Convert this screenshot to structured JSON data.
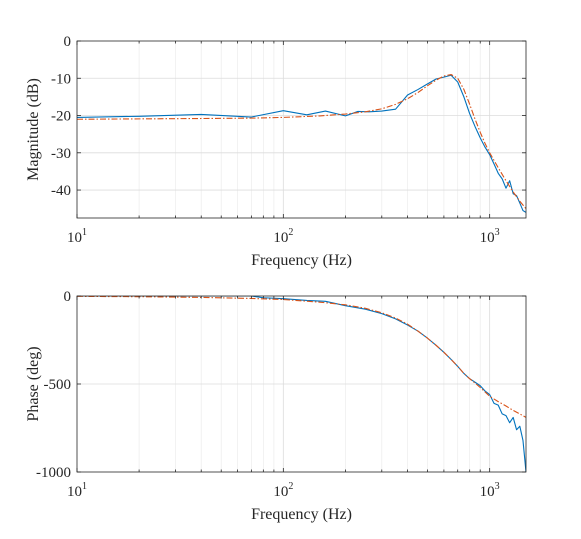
{
  "chart_data": [
    {
      "type": "line",
      "xscale": "log",
      "xlim": [
        10,
        1500
      ],
      "ylim": [
        -47.5,
        0
      ],
      "xlabel": "Frequency (Hz)",
      "ylabel": "Magnitude (dB)",
      "yticks": [
        0,
        -10,
        -20,
        -30,
        -40
      ],
      "ytick_labels": [
        "0",
        "-10",
        "-20",
        "-30",
        "-40"
      ],
      "xticks": [
        {
          "value": 10,
          "base": "10",
          "exp": "1"
        },
        {
          "value": 100,
          "base": "10",
          "exp": "2"
        },
        {
          "value": 1000,
          "base": "10",
          "exp": "3"
        }
      ],
      "grid": true,
      "series": [
        {
          "color": "#0072BD",
          "style": "solid",
          "x": [
            10,
            20,
            40,
            70,
            100,
            130,
            160,
            200,
            230,
            260,
            300,
            350,
            400,
            450,
            500,
            550,
            600,
            650,
            700,
            750,
            800,
            850,
            900,
            950,
            1000,
            1050,
            1100,
            1150,
            1200,
            1250,
            1300,
            1350,
            1400,
            1450,
            1500
          ],
          "y": [
            -20.5,
            -20.2,
            -19.7,
            -20.4,
            -18.7,
            -19.8,
            -18.8,
            -20.1,
            -18.9,
            -19.0,
            -18.8,
            -18.3,
            -14.5,
            -13.0,
            -11.5,
            -10.2,
            -9.7,
            -9.2,
            -11.0,
            -15.0,
            -19.5,
            -23.0,
            -26.0,
            -28.5,
            -30.5,
            -33.0,
            -35.5,
            -37.0,
            -39.5,
            -37.5,
            -41.0,
            -41.5,
            -43.5,
            -45.5,
            -46.0
          ]
        },
        {
          "color": "#D95319",
          "style": "dashdot",
          "x": [
            10,
            20,
            40,
            70,
            100,
            150,
            200,
            250,
            300,
            350,
            400,
            450,
            500,
            550,
            600,
            650,
            700,
            750,
            800,
            850,
            900,
            950,
            1000,
            1100,
            1200,
            1300,
            1400,
            1500
          ],
          "y": [
            -21.0,
            -20.9,
            -20.8,
            -20.7,
            -20.5,
            -20.1,
            -19.6,
            -19.0,
            -18.2,
            -17.0,
            -15.5,
            -13.8,
            -12.0,
            -10.5,
            -9.4,
            -9.0,
            -10.0,
            -13.0,
            -17.0,
            -21.0,
            -24.5,
            -27.5,
            -30.0,
            -34.0,
            -37.5,
            -40.5,
            -43.0,
            -45.0
          ]
        }
      ]
    },
    {
      "type": "line",
      "xscale": "log",
      "xlim": [
        10,
        1500
      ],
      "ylim": [
        -1000,
        0
      ],
      "xlabel": "Frequency (Hz)",
      "ylabel": "Phase (deg)",
      "yticks": [
        0,
        -500,
        -1000
      ],
      "ytick_labels": [
        "0",
        "-500",
        "-1000"
      ],
      "xticks": [
        {
          "value": 10,
          "base": "10",
          "exp": "1"
        },
        {
          "value": 100,
          "base": "10",
          "exp": "2"
        },
        {
          "value": 1000,
          "base": "10",
          "exp": "3"
        }
      ],
      "grid": true,
      "series": [
        {
          "color": "#0072BD",
          "style": "solid",
          "x": [
            10,
            20,
            40,
            70,
            80,
            100,
            130,
            160,
            200,
            250,
            300,
            350,
            400,
            450,
            500,
            550,
            600,
            650,
            700,
            750,
            800,
            850,
            900,
            950,
            1000,
            1050,
            1100,
            1150,
            1200,
            1250,
            1300,
            1350,
            1400,
            1450,
            1500
          ],
          "y": [
            0,
            0,
            0,
            0,
            -10,
            -15,
            -25,
            -30,
            -55,
            -75,
            -100,
            -130,
            -165,
            -200,
            -240,
            -280,
            -320,
            -360,
            -400,
            -440,
            -470,
            -490,
            -510,
            -540,
            -560,
            -610,
            -620,
            -670,
            -680,
            -720,
            -690,
            -760,
            -740,
            -820,
            -1000
          ]
        },
        {
          "color": "#D95319",
          "style": "dashdot",
          "x": [
            10,
            20,
            40,
            70,
            100,
            150,
            200,
            250,
            300,
            350,
            400,
            450,
            500,
            550,
            600,
            650,
            700,
            750,
            800,
            850,
            900,
            950,
            1000,
            1100,
            1200,
            1300,
            1400,
            1500
          ],
          "y": [
            -2,
            -4,
            -8,
            -14,
            -20,
            -35,
            -50,
            -70,
            -95,
            -125,
            -160,
            -200,
            -240,
            -280,
            -320,
            -360,
            -400,
            -440,
            -470,
            -495,
            -520,
            -545,
            -570,
            -600,
            -625,
            -650,
            -670,
            -690
          ]
        }
      ]
    }
  ]
}
